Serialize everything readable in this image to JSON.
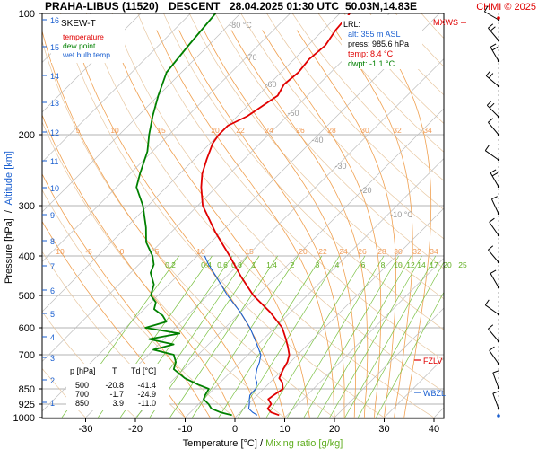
{
  "header": {
    "station": "PRAHA-LIBUS (11520)",
    "mode": "DESCENT",
    "datetime": "28.04.2025 01:30 UTC",
    "position": "50.03N,14.83E",
    "copyright": "CHMI © 2025"
  },
  "legend": {
    "title": "SKEW-T",
    "items": [
      {
        "label": "temperature",
        "color": "#e00000"
      },
      {
        "label": "dew point",
        "color": "#008000"
      },
      {
        "label": "wet bulb temp.",
        "color": "#1a5fd0"
      }
    ]
  },
  "lrl": {
    "title": "LRL:",
    "alt": "alt: 355 m ASL",
    "press": "press: 985.6 hPa",
    "temp": "temp: 8.4 °C",
    "dwpt": "dwpt: -1.1 °C"
  },
  "markers": {
    "mxws": "MXWS",
    "fzlv": "FZLV",
    "wbzl": "WBZL"
  },
  "table": {
    "headers": [
      "p [hPa]",
      "T",
      "Td [°C]"
    ],
    "rows": [
      [
        "500",
        "-20.8",
        "-41.4"
      ],
      [
        "700",
        "-1.7",
        "-24.9"
      ],
      [
        "850",
        "3.9",
        "-11.0"
      ]
    ]
  },
  "axes": {
    "xlabel_temp": "Temperature [°C]",
    "xlabel_sep": " / ",
    "xlabel_mix": "Mixing ratio [g/kg]",
    "ylabel_press": "Pressure [hPa]",
    "ylabel_sep": "  /  ",
    "ylabel_alt": "Altitude [km]",
    "xticks": [
      -30,
      -20,
      -10,
      0,
      10,
      20,
      30,
      40
    ],
    "pticks": [
      100,
      200,
      300,
      400,
      500,
      600,
      700,
      850,
      925,
      1000
    ],
    "alt_ticks": [
      "16",
      "15",
      "14",
      "13",
      "12",
      "11",
      "10",
      "9",
      "8",
      "7",
      "6",
      "5",
      "4",
      "3",
      "2",
      "1"
    ],
    "theta_labels_upper": [
      "5",
      "10",
      "15",
      "20",
      "22",
      "24",
      "26",
      "28",
      "30",
      "32",
      "34"
    ],
    "theta_labels_lower": [
      "10",
      "-5",
      "0",
      "5",
      "10",
      "15",
      "20",
      "22",
      "24",
      "26",
      "28",
      "30",
      "32",
      "34"
    ],
    "iso_labels": [
      "-80 °C",
      "-70",
      "-60",
      "-50",
      "-40",
      "-30",
      "-20",
      "-10 °C"
    ],
    "mix_labels": [
      "0.2",
      "0.4",
      "0.6",
      "0.8",
      "1",
      "1.4",
      "2",
      "3",
      "4",
      "6",
      "8",
      "10",
      "12",
      "14",
      "17",
      "20",
      "25"
    ]
  },
  "chart_data": {
    "type": "line",
    "diagram": "skew-T log-p",
    "x_unit": "°C",
    "y_unit": "hPa",
    "ylim": [
      1000,
      100
    ],
    "xlim": [
      -37,
      45
    ],
    "series": [
      {
        "name": "temperature",
        "color": "#e00000",
        "points": [
          [
            986,
            8.4
          ],
          [
            970,
            6.2
          ],
          [
            950,
            4.8
          ],
          [
            925,
            4.6
          ],
          [
            900,
            3.0
          ],
          [
            880,
            3.3
          ],
          [
            850,
            3.9
          ],
          [
            820,
            2.5
          ],
          [
            800,
            1.0
          ],
          [
            760,
            0.0
          ],
          [
            730,
            -0.6
          ],
          [
            700,
            -1.7
          ],
          [
            670,
            -3.5
          ],
          [
            640,
            -5.5
          ],
          [
            600,
            -8.5
          ],
          [
            550,
            -14.0
          ],
          [
            500,
            -20.8
          ],
          [
            450,
            -27.0
          ],
          [
            400,
            -33.5
          ],
          [
            350,
            -41.0
          ],
          [
            300,
            -49.0
          ],
          [
            270,
            -53.0
          ],
          [
            250,
            -55.5
          ],
          [
            230,
            -57.5
          ],
          [
            210,
            -59.5
          ],
          [
            200,
            -60.0
          ],
          [
            190,
            -60.0
          ],
          [
            180,
            -58.0
          ],
          [
            170,
            -57.0
          ],
          [
            160,
            -56.0
          ],
          [
            150,
            -57.0
          ],
          [
            140,
            -56.5
          ],
          [
            130,
            -57.0
          ],
          [
            120,
            -56.5
          ],
          [
            110,
            -57.5
          ],
          [
            100,
            -58.0
          ]
        ]
      },
      {
        "name": "dew point",
        "color": "#008000",
        "points": [
          [
            986,
            -1.1
          ],
          [
            970,
            -4.0
          ],
          [
            950,
            -6.5
          ],
          [
            925,
            -8.0
          ],
          [
            900,
            -10.0
          ],
          [
            880,
            -10.5
          ],
          [
            850,
            -11.0
          ],
          [
            830,
            -14.0
          ],
          [
            800,
            -18.0
          ],
          [
            760,
            -22.0
          ],
          [
            730,
            -23.0
          ],
          [
            700,
            -24.9
          ],
          [
            680,
            -30.0
          ],
          [
            660,
            -27.0
          ],
          [
            640,
            -33.0
          ],
          [
            620,
            -28.0
          ],
          [
            600,
            -36.0
          ],
          [
            580,
            -33.0
          ],
          [
            560,
            -35.0
          ],
          [
            540,
            -38.0
          ],
          [
            520,
            -39.0
          ],
          [
            500,
            -41.4
          ],
          [
            470,
            -43.0
          ],
          [
            440,
            -46.0
          ],
          [
            420,
            -47.0
          ],
          [
            400,
            -49.0
          ],
          [
            370,
            -53.0
          ],
          [
            340,
            -56.0
          ],
          [
            300,
            -61.0
          ],
          [
            270,
            -66.0
          ],
          [
            250,
            -68.0
          ],
          [
            220,
            -71.0
          ],
          [
            200,
            -74.0
          ],
          [
            180,
            -77.0
          ],
          [
            160,
            -80.0
          ],
          [
            140,
            -83.0
          ],
          [
            120,
            -84.0
          ],
          [
            100,
            -85.0
          ]
        ]
      },
      {
        "name": "wet bulb temp.",
        "color": "#1a5fd0",
        "points": [
          [
            986,
            4.0
          ],
          [
            970,
            2.5
          ],
          [
            950,
            1.0
          ],
          [
            925,
            0.2
          ],
          [
            900,
            -0.8
          ],
          [
            880,
            -1.5
          ],
          [
            850,
            -1.6
          ],
          [
            820,
            -2.6
          ],
          [
            800,
            -3.8
          ],
          [
            760,
            -5.3
          ],
          [
            730,
            -6.2
          ],
          [
            700,
            -7.4
          ],
          [
            650,
            -11.0
          ],
          [
            600,
            -15.0
          ],
          [
            550,
            -20.0
          ],
          [
            500,
            -26.0
          ],
          [
            450,
            -32.0
          ],
          [
            420,
            -36.0
          ],
          [
            400,
            -38.5
          ]
        ]
      }
    ]
  }
}
